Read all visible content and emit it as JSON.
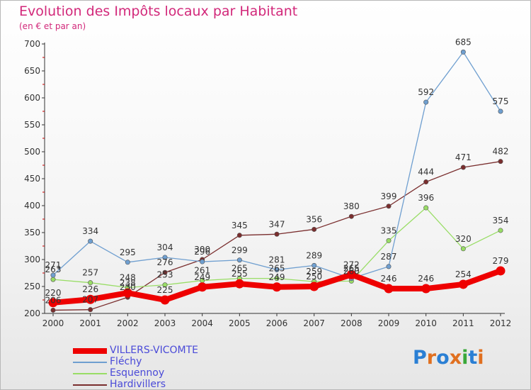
{
  "title": "Evolution des Impôts locaux par Habitant",
  "subtitle": "(en € et par an)",
  "logo": {
    "text": "Proxiti",
    "letter_colors": [
      "#2a7fd4",
      "#e07020",
      "#2a7fd4",
      "#e07020",
      "#3aa83a",
      "#2a7fd4",
      "#e07020"
    ]
  },
  "chart_data": {
    "type": "line",
    "title": "Evolution des Impôts locaux par Habitant",
    "subtitle": "(en € et par an)",
    "x": [
      "2000",
      "2001",
      "2002",
      "2003",
      "2004",
      "2005",
      "2006",
      "2007",
      "2008",
      "2009",
      "2010",
      "2011",
      "2012"
    ],
    "ylim": [
      200,
      700
    ],
    "yticks": [
      "200",
      "250",
      "300",
      "350",
      "400",
      "450",
      "500",
      "550",
      "600",
      "650",
      "700"
    ],
    "grid": false,
    "legend_position": "bottom-left",
    "series": [
      {
        "name": "VILLERS-VICOMTE",
        "color": "#ee0000",
        "values": [
          220,
          226,
          238,
          225,
          249,
          255,
          249,
          250,
          272,
          246,
          246,
          254,
          279
        ],
        "thick": true
      },
      {
        "name": "Fléchy",
        "color": "#6f9fd0",
        "values": [
          271,
          334,
          295,
          304,
          296,
          299,
          281,
          289,
          265,
          287,
          592,
          685,
          575
        ]
      },
      {
        "name": "Esquennoy",
        "color": "#99dd66",
        "values": [
          263,
          257,
          248,
          253,
          261,
          265,
          265,
          259,
          260,
          335,
          396,
          320,
          354
        ]
      },
      {
        "name": "Hardivillers",
        "color": "#7a2e2e",
        "values": [
          206,
          207,
          230,
          276,
          300,
          345,
          347,
          356,
          380,
          399,
          444,
          471,
          482
        ]
      }
    ]
  }
}
